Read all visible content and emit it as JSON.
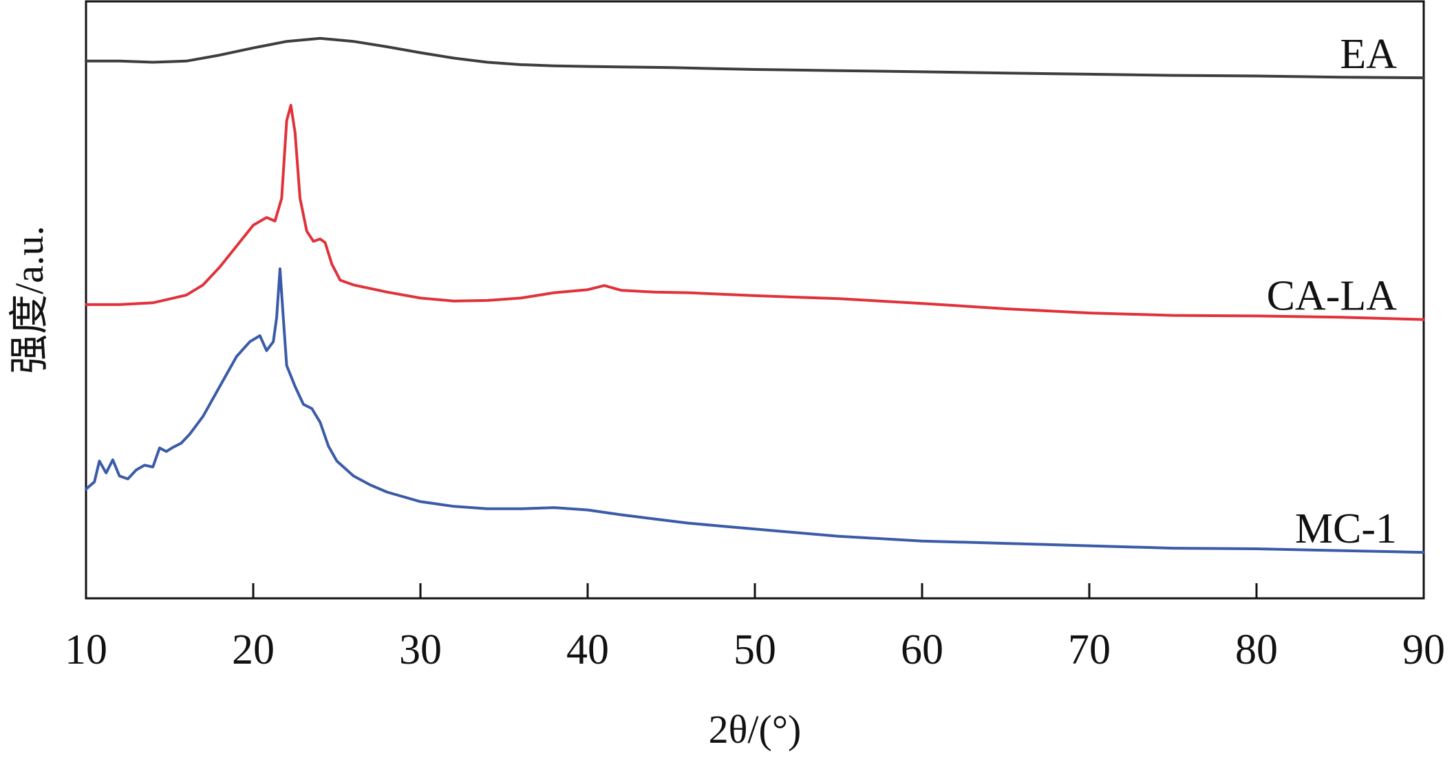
{
  "chart_data": {
    "type": "line",
    "title": "",
    "xlabel": "2θ/(°)",
    "ylabel": "强度/a.u.",
    "xlim": [
      10,
      90
    ],
    "ylim": [
      0,
      100
    ],
    "x_ticks": [
      "10",
      "20",
      "30",
      "40",
      "50",
      "60",
      "70",
      "80",
      "90"
    ],
    "y_ticks_shown": false,
    "grid": false,
    "legend": "inline labels at right",
    "series": [
      {
        "name": "EA",
        "color": "#3d3d3d",
        "points": [
          [
            10,
            90
          ],
          [
            12,
            90
          ],
          [
            14,
            89.8
          ],
          [
            16,
            90
          ],
          [
            18,
            91
          ],
          [
            20,
            92.2
          ],
          [
            22,
            93.3
          ],
          [
            24,
            93.8
          ],
          [
            26,
            93.3
          ],
          [
            28,
            92.4
          ],
          [
            30,
            91.4
          ],
          [
            32,
            90.5
          ],
          [
            34,
            89.8
          ],
          [
            36,
            89.4
          ],
          [
            38,
            89.2
          ],
          [
            40,
            89.1
          ],
          [
            45,
            88.9
          ],
          [
            50,
            88.6
          ],
          [
            55,
            88.4
          ],
          [
            60,
            88.2
          ],
          [
            65,
            88
          ],
          [
            70,
            87.8
          ],
          [
            75,
            87.6
          ],
          [
            80,
            87.5
          ],
          [
            85,
            87.3
          ],
          [
            90,
            87.2
          ]
        ]
      },
      {
        "name": "CA-LA",
        "color": "#e0323a",
        "points": [
          [
            10,
            49.2
          ],
          [
            12,
            49.2
          ],
          [
            14,
            49.5
          ],
          [
            16,
            50.8
          ],
          [
            17,
            52.5
          ],
          [
            18,
            55.5
          ],
          [
            19,
            59
          ],
          [
            20,
            62.5
          ],
          [
            20.8,
            63.8
          ],
          [
            21.3,
            63.2
          ],
          [
            21.7,
            67
          ],
          [
            22,
            80
          ],
          [
            22.25,
            82.6
          ],
          [
            22.5,
            78
          ],
          [
            22.8,
            67
          ],
          [
            23.2,
            61.5
          ],
          [
            23.6,
            59.8
          ],
          [
            24,
            60.2
          ],
          [
            24.3,
            59.6
          ],
          [
            24.7,
            56
          ],
          [
            25.2,
            53.3
          ],
          [
            26,
            52.5
          ],
          [
            28,
            51.3
          ],
          [
            30,
            50.3
          ],
          [
            32,
            49.8
          ],
          [
            34,
            49.9
          ],
          [
            36,
            50.3
          ],
          [
            38,
            51.2
          ],
          [
            40,
            51.7
          ],
          [
            41,
            52.4
          ],
          [
            42,
            51.6
          ],
          [
            44,
            51.3
          ],
          [
            46,
            51.2
          ],
          [
            50,
            50.7
          ],
          [
            55,
            50.2
          ],
          [
            60,
            49.4
          ],
          [
            65,
            48.5
          ],
          [
            70,
            47.8
          ],
          [
            75,
            47.4
          ],
          [
            80,
            47.3
          ],
          [
            85,
            47.1
          ],
          [
            90,
            46.7
          ]
        ]
      },
      {
        "name": "MC-1",
        "color": "#3b5ba8",
        "points": [
          [
            10,
            18.3
          ],
          [
            10.5,
            19.5
          ],
          [
            10.8,
            23
          ],
          [
            11.2,
            21
          ],
          [
            11.6,
            23.2
          ],
          [
            12,
            20.5
          ],
          [
            12.5,
            20
          ],
          [
            13,
            21.5
          ],
          [
            13.5,
            22.3
          ],
          [
            14,
            22
          ],
          [
            14.4,
            25.2
          ],
          [
            14.8,
            24.6
          ],
          [
            15.2,
            25.3
          ],
          [
            15.7,
            26
          ],
          [
            16.2,
            27.5
          ],
          [
            17,
            30.5
          ],
          [
            18,
            35.5
          ],
          [
            19,
            40.5
          ],
          [
            19.8,
            43
          ],
          [
            20.4,
            44
          ],
          [
            20.8,
            41.5
          ],
          [
            21.2,
            43
          ],
          [
            21.4,
            47
          ],
          [
            21.6,
            55.2
          ],
          [
            21.8,
            47
          ],
          [
            22,
            39
          ],
          [
            22.5,
            35.5
          ],
          [
            23,
            32.5
          ],
          [
            23.5,
            31.8
          ],
          [
            24,
            29.5
          ],
          [
            24.5,
            25.5
          ],
          [
            25,
            23
          ],
          [
            26,
            20.5
          ],
          [
            27,
            19
          ],
          [
            28,
            17.8
          ],
          [
            30,
            16.2
          ],
          [
            32,
            15.4
          ],
          [
            34,
            15
          ],
          [
            36,
            15
          ],
          [
            38,
            15.2
          ],
          [
            40,
            14.8
          ],
          [
            42,
            14
          ],
          [
            44,
            13.3
          ],
          [
            46,
            12.6
          ],
          [
            48,
            12.1
          ],
          [
            50,
            11.6
          ],
          [
            55,
            10.4
          ],
          [
            60,
            9.6
          ],
          [
            65,
            9.2
          ],
          [
            70,
            8.8
          ],
          [
            75,
            8.4
          ],
          [
            80,
            8.3
          ],
          [
            85,
            8
          ],
          [
            90,
            7.7
          ]
        ]
      }
    ]
  }
}
